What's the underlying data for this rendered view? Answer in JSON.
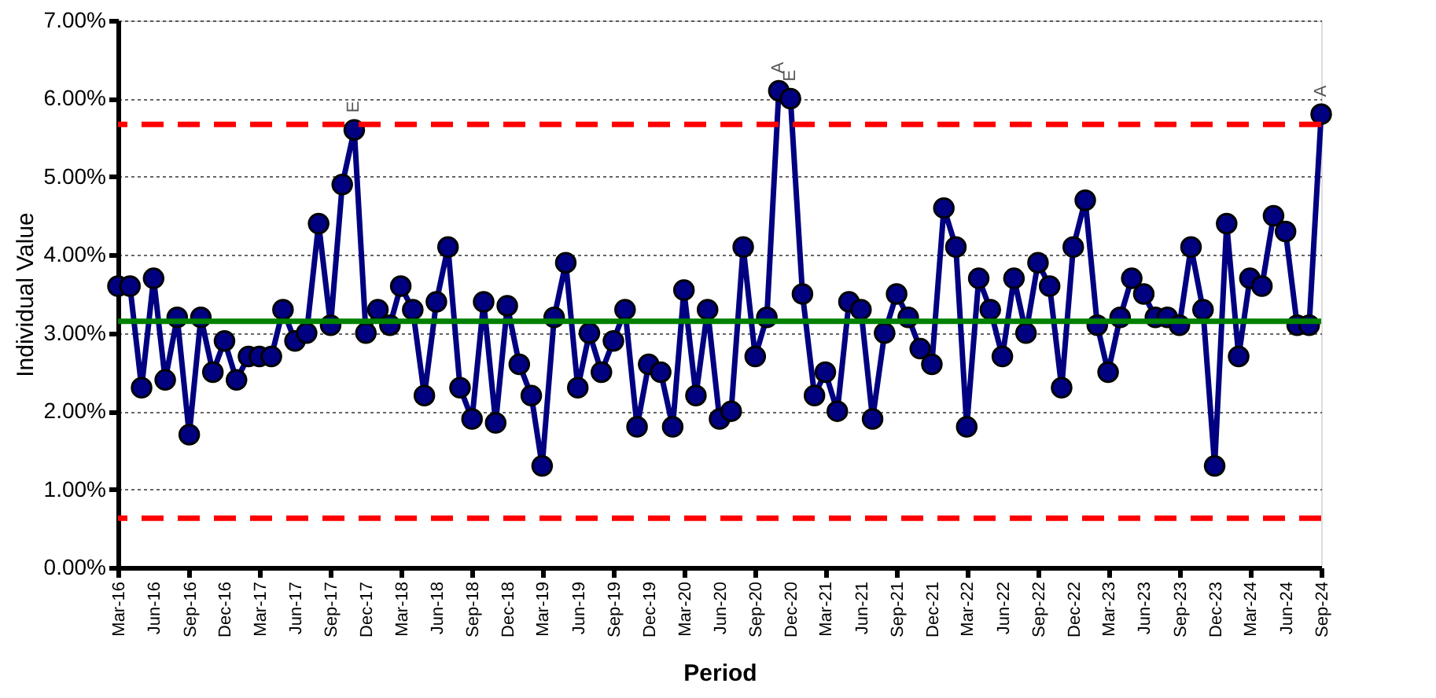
{
  "chart_data": {
    "type": "line",
    "xlabel": "Period",
    "ylabel": "Individual Value",
    "x": [
      "2016-03",
      "2016-04",
      "2016-05",
      "2016-06",
      "2016-07",
      "2016-08",
      "2016-09",
      "2016-10",
      "2016-11",
      "2016-12",
      "2017-01",
      "2017-02",
      "2017-03",
      "2017-04",
      "2017-05",
      "2017-06",
      "2017-07",
      "2017-08",
      "2017-09",
      "2017-10",
      "2017-11",
      "2017-12",
      "2018-01",
      "2018-02",
      "2018-03",
      "2018-04",
      "2018-05",
      "2018-06",
      "2018-07",
      "2018-08",
      "2018-09",
      "2018-10",
      "2018-11",
      "2018-12",
      "2019-01",
      "2019-02",
      "2019-03",
      "2019-04",
      "2019-05",
      "2019-06",
      "2019-07",
      "2019-08",
      "2019-09",
      "2019-10",
      "2019-11",
      "2019-12",
      "2020-01",
      "2020-02",
      "2020-03",
      "2020-04",
      "2020-05",
      "2020-06",
      "2020-07",
      "2020-08",
      "2020-09",
      "2020-10",
      "2020-11",
      "2020-12",
      "2021-01",
      "2021-02",
      "2021-03",
      "2021-04",
      "2021-05",
      "2021-06",
      "2021-07",
      "2021-08",
      "2021-09",
      "2021-10",
      "2021-11",
      "2021-12",
      "2022-01",
      "2022-02",
      "2022-03",
      "2022-04",
      "2022-05",
      "2022-06",
      "2022-07",
      "2022-08",
      "2022-09",
      "2022-10",
      "2022-11",
      "2022-12",
      "2023-01",
      "2023-02",
      "2023-03",
      "2023-04",
      "2023-05",
      "2023-06",
      "2023-07",
      "2023-08",
      "2023-09",
      "2023-10",
      "2023-11",
      "2023-12",
      "2024-01",
      "2024-02",
      "2024-03",
      "2024-04",
      "2024-05",
      "2024-06",
      "2024-07",
      "2024-08",
      "2024-09"
    ],
    "series": [
      {
        "color": "#000080",
        "values": [
          3.6,
          3.6,
          2.3,
          3.7,
          2.4,
          3.2,
          1.7,
          3.2,
          2.5,
          2.9,
          2.4,
          2.7,
          2.7,
          2.7,
          3.3,
          2.9,
          3.0,
          4.4,
          3.1,
          4.9,
          5.6,
          3.0,
          3.3,
          3.1,
          3.6,
          3.3,
          2.2,
          3.4,
          4.1,
          2.3,
          1.9,
          3.4,
          1.85,
          3.35,
          2.6,
          2.2,
          1.3,
          3.2,
          3.9,
          2.3,
          3.0,
          2.5,
          2.9,
          3.3,
          1.8,
          2.6,
          2.5,
          1.8,
          3.55,
          2.2,
          3.3,
          1.9,
          2.0,
          4.1,
          2.7,
          3.2,
          6.1,
          6.0,
          3.5,
          2.2,
          2.5,
          2.0,
          3.4,
          3.3,
          1.9,
          3.0,
          3.5,
          3.2,
          2.8,
          2.6,
          4.6,
          4.1,
          1.8,
          3.7,
          3.3,
          2.7,
          3.7,
          3.0,
          3.9,
          3.6,
          2.3,
          4.1,
          4.7,
          3.1,
          2.5,
          3.2,
          3.7,
          3.5,
          3.2,
          3.2,
          3.1,
          4.1,
          3.3,
          1.3,
          4.4,
          2.7,
          3.7,
          3.6,
          4.5,
          4.3,
          3.1,
          3.1,
          5.8
        ]
      }
    ],
    "xlim": [
      "2016-03",
      "2024-09"
    ],
    "xticks": [
      {
        "value": "2016-03",
        "label": "Mar-16"
      },
      {
        "value": "2016-06",
        "label": "Jun-16"
      },
      {
        "value": "2016-09",
        "label": "Sep-16"
      },
      {
        "value": "2016-12",
        "label": "Dec-16"
      },
      {
        "value": "2017-03",
        "label": "Mar-17"
      },
      {
        "value": "2017-06",
        "label": "Jun-17"
      },
      {
        "value": "2017-09",
        "label": "Sep-17"
      },
      {
        "value": "2017-12",
        "label": "Dec-17"
      },
      {
        "value": "2018-03",
        "label": "Mar-18"
      },
      {
        "value": "2018-06",
        "label": "Jun-18"
      },
      {
        "value": "2018-09",
        "label": "Sep-18"
      },
      {
        "value": "2018-12",
        "label": "Dec-18"
      },
      {
        "value": "2019-03",
        "label": "Mar-19"
      },
      {
        "value": "2019-06",
        "label": "Jun-19"
      },
      {
        "value": "2019-09",
        "label": "Sep-19"
      },
      {
        "value": "2019-12",
        "label": "Dec-19"
      },
      {
        "value": "2020-03",
        "label": "Mar-20"
      },
      {
        "value": "2020-06",
        "label": "Jun-20"
      },
      {
        "value": "2020-09",
        "label": "Sep-20"
      },
      {
        "value": "2020-12",
        "label": "Dec-20"
      },
      {
        "value": "2021-03",
        "label": "Mar-21"
      },
      {
        "value": "2021-06",
        "label": "Jun-21"
      },
      {
        "value": "2021-09",
        "label": "Sep-21"
      },
      {
        "value": "2021-12",
        "label": "Dec-21"
      },
      {
        "value": "2022-03",
        "label": "Mar-22"
      },
      {
        "value": "2022-06",
        "label": "Jun-22"
      },
      {
        "value": "2022-09",
        "label": "Sep-22"
      },
      {
        "value": "2022-12",
        "label": "Dec-22"
      },
      {
        "value": "2023-03",
        "label": "Mar-23"
      },
      {
        "value": "2023-06",
        "label": "Jun-23"
      },
      {
        "value": "2023-09",
        "label": "Sep-23"
      },
      {
        "value": "2023-12",
        "label": "Dec-23"
      },
      {
        "value": "2024-03",
        "label": "Mar-24"
      },
      {
        "value": "2024-06",
        "label": "Jun-24"
      },
      {
        "value": "2024-09",
        "label": "Sep-24"
      }
    ],
    "ylim": [
      0,
      7
    ],
    "yticks": [
      {
        "value": 0,
        "label": "0.00%"
      },
      {
        "value": 1,
        "label": "1.00%"
      },
      {
        "value": 2,
        "label": "2.00%"
      },
      {
        "value": 3,
        "label": "3.00%"
      },
      {
        "value": 4,
        "label": "4.00%"
      },
      {
        "value": 5,
        "label": "5.00%"
      },
      {
        "value": 6,
        "label": "6.00%"
      },
      {
        "value": 7,
        "label": "7.00%"
      }
    ],
    "ref_lines": [
      {
        "axis": "y",
        "value": 5.67,
        "color": "#ff0000",
        "line_style": "dashed"
      },
      {
        "axis": "y",
        "value": 3.15,
        "color": "#008000",
        "line_style": "solid"
      },
      {
        "axis": "y",
        "value": 0.63,
        "color": "#ff0000",
        "line_style": "dashed"
      }
    ],
    "annotations": [
      {
        "text": "E",
        "x": "2017-11",
        "y": 5.6
      },
      {
        "text": "A",
        "x": "2020-11",
        "y": 6.1
      },
      {
        "text": "E",
        "x": "2020-12",
        "y": 6.0
      },
      {
        "text": "A",
        "x": "2024-09",
        "y": 5.8
      }
    ],
    "grid": "y",
    "marker": "circle",
    "line_style": "solid",
    "legend": false
  }
}
